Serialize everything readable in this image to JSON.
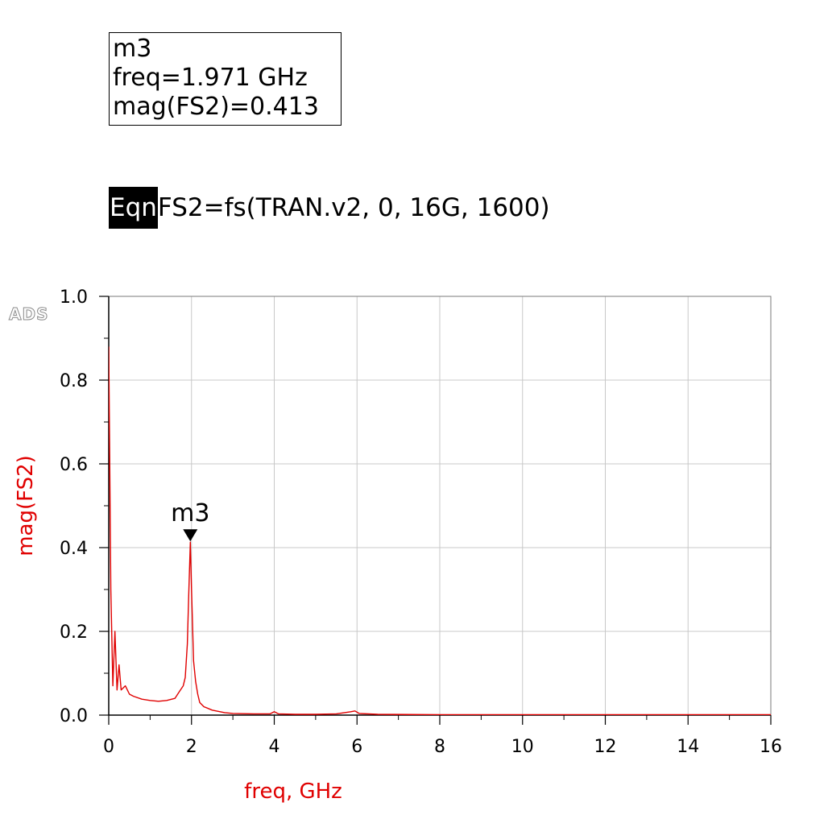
{
  "marker_readout": {
    "name": "m3",
    "freq_line": "freq=1.971 GHz",
    "value_line": "mag(FS2)=0.413"
  },
  "equation": {
    "tag": "Eqn",
    "text": "FS2=fs(TRAN.v2, 0, 16G, 1600)"
  },
  "logo": "ADS",
  "colors": {
    "trace": "#e00000",
    "grid": "#c8c8c8",
    "axis": "#000000",
    "label": "#e00000"
  },
  "chart_data": {
    "type": "line",
    "xlabel": "freq, GHz",
    "ylabel": "mag(FS2)",
    "xlim": [
      0,
      16
    ],
    "ylim": [
      0,
      1.0
    ],
    "xticks": [
      0,
      2,
      4,
      6,
      8,
      10,
      12,
      14,
      16
    ],
    "yticks": [
      0.0,
      0.2,
      0.4,
      0.6,
      0.8,
      1.0
    ],
    "ytick_labels": [
      "0.0",
      "0.2",
      "0.4",
      "0.6",
      "0.8",
      "1.0"
    ],
    "grid": true,
    "marker": {
      "label": "m3",
      "x": 1.971,
      "y": 0.413
    },
    "series": [
      {
        "x": [
          0,
          0.05,
          0.1,
          0.15,
          0.2,
          0.25,
          0.3,
          0.4,
          0.5,
          0.6,
          0.8,
          1.0,
          1.2,
          1.4,
          1.6,
          1.7,
          1.8,
          1.85,
          1.9,
          1.93,
          1.971,
          2.0,
          2.05,
          2.1,
          2.15,
          2.2,
          2.3,
          2.5,
          2.8,
          3.0,
          3.5,
          3.9,
          4.0,
          4.1,
          4.5,
          5.0,
          5.5,
          5.85,
          5.95,
          6.05,
          6.5,
          8.0,
          10.0,
          12.0,
          14.0,
          16.0
        ],
        "y": [
          0.88,
          0.3,
          0.07,
          0.2,
          0.06,
          0.12,
          0.06,
          0.07,
          0.05,
          0.045,
          0.038,
          0.035,
          0.033,
          0.035,
          0.04,
          0.055,
          0.07,
          0.09,
          0.17,
          0.28,
          0.413,
          0.3,
          0.13,
          0.08,
          0.05,
          0.03,
          0.02,
          0.012,
          0.006,
          0.004,
          0.003,
          0.003,
          0.008,
          0.003,
          0.002,
          0.002,
          0.003,
          0.008,
          0.01,
          0.004,
          0.002,
          0.001,
          0.001,
          0.001,
          0.001,
          0.001
        ]
      }
    ]
  }
}
